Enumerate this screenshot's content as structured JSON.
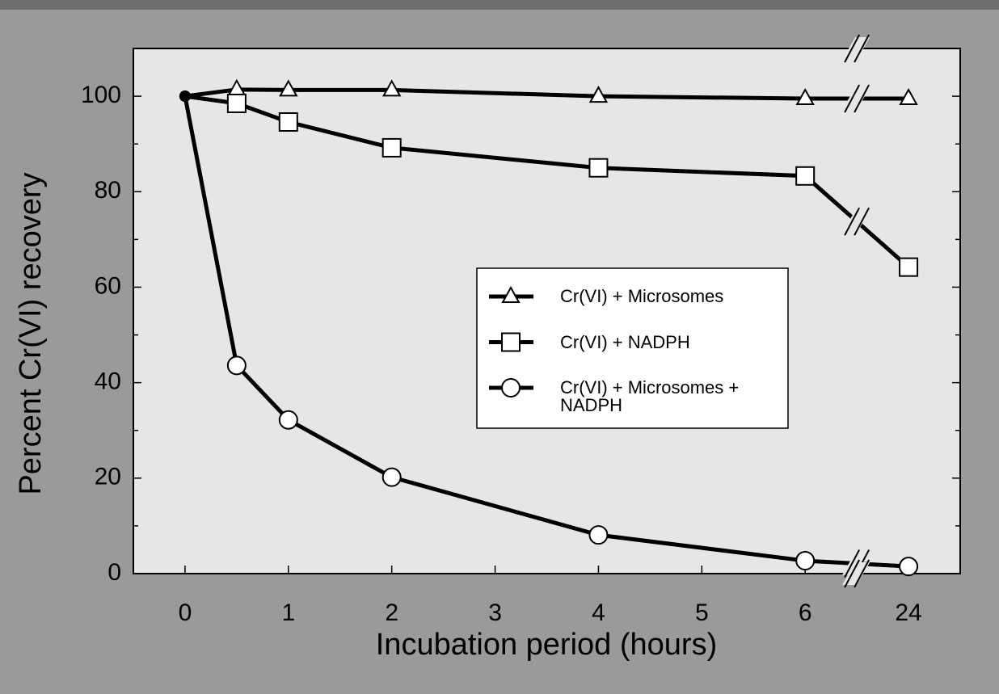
{
  "chart_data": {
    "type": "line",
    "xlabel": "Incubation period (hours)",
    "ylabel": "Percent Cr(VI) recovery",
    "x": [
      0,
      0.5,
      1,
      2,
      4,
      6,
      24
    ],
    "xlim": [
      -0.5,
      24.5
    ],
    "xticks": [
      0,
      1,
      2,
      3,
      4,
      5,
      6,
      24
    ],
    "x_axis_break": true,
    "ylim": [
      0,
      110
    ],
    "yticks": [
      0,
      20,
      40,
      60,
      80,
      100
    ],
    "yminorticks": [
      10,
      30,
      50,
      70,
      90
    ],
    "series": [
      {
        "name": "Cr(VI) + Microsomes",
        "marker": "triangle",
        "color": "#000000",
        "values": [
          100,
          101.4,
          101.3,
          101.3,
          100,
          99.5,
          99.5
        ]
      },
      {
        "name": "Cr(VI) + NADPH",
        "marker": "square",
        "color": "#000000",
        "values": [
          100,
          98.5,
          94.6,
          89.2,
          85,
          83.3,
          64.2
        ]
      },
      {
        "name": "Cr(VI) + Microsomes + NADPH",
        "marker": "circle",
        "color": "#000000",
        "values": [
          100,
          43.6,
          32.2,
          20.2,
          8.1,
          2.7,
          1.5
        ]
      }
    ]
  }
}
